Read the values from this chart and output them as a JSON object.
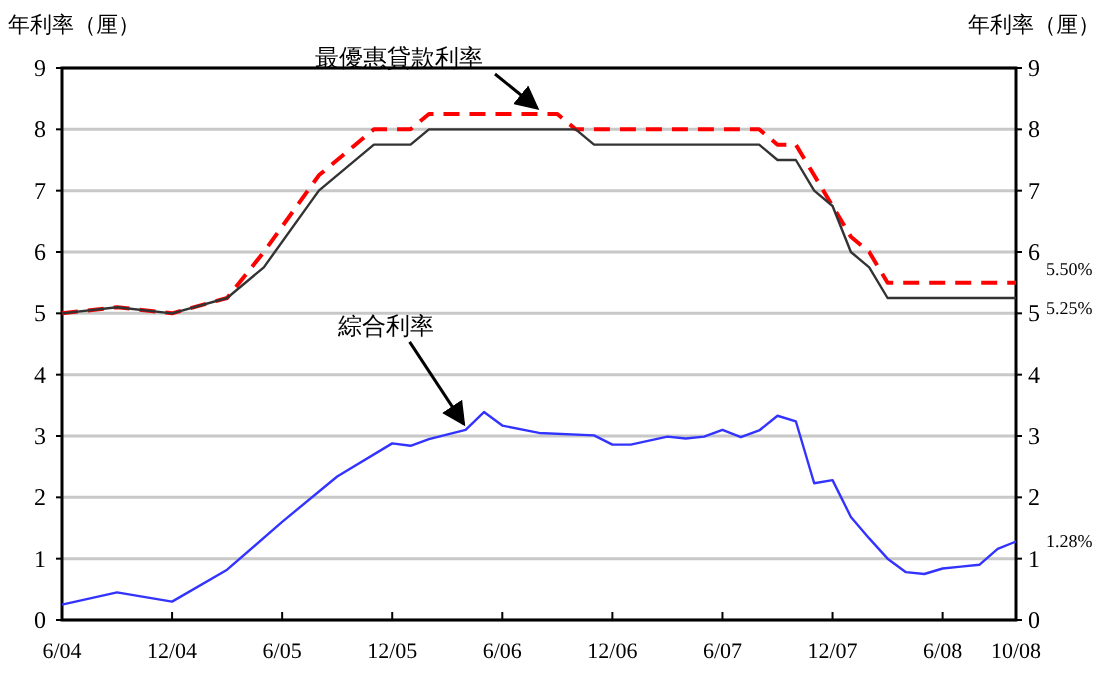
{
  "chart_data": {
    "type": "line",
    "ylabel": "年利率（厘）",
    "y2label": "年利率（厘）",
    "xlim": [
      "2004-06",
      "2008-10"
    ],
    "xticks": [
      {
        "value": "2004-06",
        "label": "6/04"
      },
      {
        "value": "2004-12",
        "label": "12/04"
      },
      {
        "value": "2005-06",
        "label": "6/05"
      },
      {
        "value": "2005-12",
        "label": "12/05"
      },
      {
        "value": "2006-06",
        "label": "6/06"
      },
      {
        "value": "2006-12",
        "label": "12/06"
      },
      {
        "value": "2007-06",
        "label": "6/07"
      },
      {
        "value": "2007-12",
        "label": "12/07"
      },
      {
        "value": "2008-06",
        "label": "6/08"
      },
      {
        "value": "2008-10",
        "label": "10/08"
      }
    ],
    "ylim": [
      0,
      9
    ],
    "yticks": [
      0,
      1,
      2,
      3,
      4,
      5,
      6,
      7,
      8,
      9
    ],
    "y2lim": [
      0,
      9
    ],
    "y2ticks": [
      0,
      1,
      2,
      3,
      4,
      5,
      6,
      7,
      8,
      9
    ],
    "grid": "y",
    "series": [
      {
        "color": "#ff0000",
        "line_style": "dashed",
        "x": [
          "2004-06",
          "2004-09",
          "2004-12",
          "2005-03",
          "2005-05",
          "2005-08",
          "2005-11",
          "2006-01",
          "2006-02",
          "2006-09",
          "2006-10",
          "2007-08",
          "2007-09",
          "2007-10",
          "2007-11",
          "2007-12",
          "2008-01",
          "2008-02",
          "2008-03",
          "2008-10"
        ],
        "values": [
          5.0,
          5.1,
          5.0,
          5.25,
          6.0,
          7.25,
          8.0,
          8.0,
          8.25,
          8.25,
          8.0,
          8.0,
          7.75,
          7.75,
          7.25,
          6.75,
          6.25,
          6.0,
          5.5,
          5.5
        ],
        "value_labels": [
          null,
          null,
          null,
          null,
          null,
          null,
          null,
          null,
          null,
          null,
          null,
          null,
          null,
          null,
          null,
          null,
          null,
          null,
          null,
          "5.50%"
        ]
      },
      {
        "color": "#333333",
        "line_style": "solid",
        "x": [
          "2004-06",
          "2004-09",
          "2004-12",
          "2005-03",
          "2005-05",
          "2005-08",
          "2005-11",
          "2006-01",
          "2006-02",
          "2006-10",
          "2006-11",
          "2007-08",
          "2007-09",
          "2007-10",
          "2007-11",
          "2007-12",
          "2008-01",
          "2008-02",
          "2008-03",
          "2008-10"
        ],
        "values": [
          5.0,
          5.1,
          5.0,
          5.25,
          5.75,
          7.0,
          7.75,
          7.75,
          8.0,
          8.0,
          7.75,
          7.75,
          7.5,
          7.5,
          7.0,
          6.75,
          6.0,
          5.75,
          5.25,
          5.25
        ],
        "value_labels": [
          null,
          null,
          null,
          null,
          null,
          null,
          null,
          null,
          null,
          null,
          null,
          null,
          null,
          null,
          null,
          null,
          null,
          null,
          null,
          "5.25%"
        ]
      },
      {
        "color": "#3333ff",
        "line_style": "solid",
        "x": [
          "2004-06",
          "2004-09",
          "2004-12",
          "2005-03",
          "2005-06",
          "2005-09",
          "2005-12",
          "2006-01",
          "2006-02",
          "2006-04",
          "2006-05",
          "2006-06",
          "2006-08",
          "2006-11",
          "2006-12",
          "2007-01",
          "2007-03",
          "2007-04",
          "2007-05",
          "2007-06",
          "2007-07",
          "2007-08",
          "2007-09",
          "2007-10",
          "2007-11",
          "2007-12",
          "2008-01",
          "2008-02",
          "2008-03",
          "2008-04",
          "2008-05",
          "2008-06",
          "2008-07",
          "2008-08",
          "2008-09",
          "2008-10"
        ],
        "values": [
          0.25,
          0.45,
          0.3,
          0.82,
          1.6,
          2.34,
          2.88,
          2.84,
          2.95,
          3.1,
          3.39,
          3.17,
          3.05,
          3.01,
          2.86,
          2.86,
          2.99,
          2.96,
          2.99,
          3.1,
          2.98,
          3.09,
          3.33,
          3.24,
          2.23,
          2.28,
          1.68,
          1.33,
          1.0,
          0.78,
          0.75,
          0.84,
          0.87,
          0.9,
          1.16,
          1.28
        ],
        "value_labels": [
          null,
          null,
          null,
          null,
          null,
          null,
          null,
          null,
          null,
          null,
          null,
          null,
          null,
          null,
          null,
          null,
          null,
          null,
          null,
          null,
          null,
          null,
          null,
          null,
          null,
          null,
          null,
          null,
          null,
          null,
          null,
          null,
          null,
          null,
          null,
          "1.28%"
        ]
      }
    ],
    "annotations": [
      {
        "text": "最優惠貸款利率",
        "x": "2006-08",
        "y": 8.25
      },
      {
        "text": "綜合利率",
        "x": "2006-04",
        "y": 3.1
      }
    ]
  }
}
